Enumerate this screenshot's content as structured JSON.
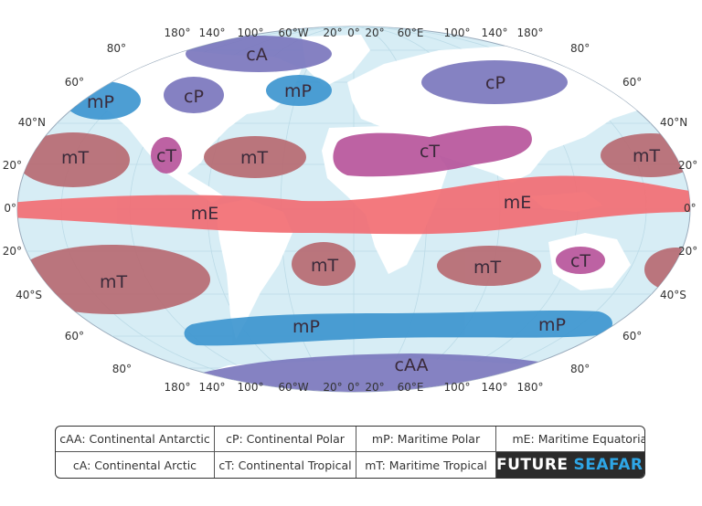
{
  "map": {
    "top_lon_labels": [
      "180°",
      "140°",
      "100°",
      "60°W",
      "20°",
      "0°",
      "20°",
      "60°E",
      "100°",
      "140°",
      "180°"
    ],
    "bottom_lon_labels": [
      "180°",
      "140°",
      "100°",
      "60°W",
      "20°",
      "0°",
      "20°",
      "60°E",
      "100°",
      "140°",
      "180°"
    ],
    "left_lat_labels": [
      "80°",
      "60°",
      "40°N",
      "20°",
      "0°",
      "20°",
      "40°S",
      "60°",
      "80°"
    ],
    "right_lat_labels": [
      "80°",
      "60°",
      "40°N",
      "20°",
      "0°",
      "20°",
      "40°S",
      "60°",
      "80°"
    ],
    "colors": {
      "ocean": "#d7edf5",
      "land": "#ffffff",
      "cA_cP": "#7b77bd",
      "mP": "#3e96d0",
      "mT": "#b86b72",
      "cT": "#b8559c",
      "mE": "#f26e74"
    },
    "air_masses": {
      "cA": "cA",
      "cP_north_america": "cP",
      "cP_asia": "cP",
      "mP_pacific_n": "mP",
      "mP_atlantic_n": "mP",
      "cT_north_america": "cT",
      "cT_africa_asia": "cT",
      "cT_australia": "cT",
      "mT_pacific_n": "mT",
      "mT_atlantic_n": "mT",
      "mT_pacific_n_east": "mT",
      "mE_west": "mE",
      "mE_east": "mE",
      "mT_pacific_s": "mT",
      "mT_atlantic_s": "mT",
      "mT_indian_s": "mT",
      "mP_southern_w": "mP",
      "mP_southern_e": "mP",
      "cAA": "cAA"
    }
  },
  "legend": {
    "cAA": "cAA: Continental Antarctic",
    "cP": "cP: Continental Polar",
    "mP": "mP: Maritime Polar",
    "mE": "mE: Maritime Equatorial",
    "cA": "cA: Continental Arctic",
    "cT": "cT: Continental Tropical",
    "mT": "mT: Maritime Tropical"
  },
  "brand": {
    "part1": "FUTURE",
    "part2": "SEAFARER"
  }
}
